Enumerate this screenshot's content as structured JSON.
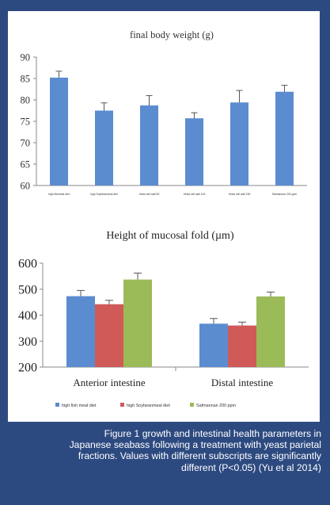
{
  "colors": {
    "background": "#2d4a80",
    "panel": "#ffffff",
    "bar_blue": "#5b8ccf",
    "bar_red": "#cf5a57",
    "bar_green": "#9bbb58",
    "axis": "#888888"
  },
  "chart_data": [
    {
      "type": "bar",
      "title": "final body weight (g)",
      "categories": [
        "high fishmeal diet",
        "high Soybeanmeal diet",
        "Yeast cell wall 50",
        "Yeast cell wall 100",
        "Yeast cell wall 150",
        "Safmannan 200 ppm"
      ],
      "values": [
        85.2,
        77.5,
        78.7,
        75.7,
        79.4,
        81.9
      ],
      "errors": [
        1.5,
        1.8,
        2.3,
        1.3,
        2.8,
        1.5
      ],
      "ylim": [
        60,
        90
      ],
      "yticks": [
        60,
        65,
        70,
        75,
        80,
        85,
        90
      ],
      "xlabel": "",
      "ylabel": "",
      "grid": false,
      "color": "#5b8ccf"
    },
    {
      "type": "bar",
      "title": "Height of mucosal fold (µm)",
      "categories": [
        "Anterior intestine",
        "Distal intestine"
      ],
      "series": [
        {
          "name": "high fish meal diet",
          "values": [
            473,
            367
          ],
          "errors": [
            22,
            20
          ],
          "color": "#5b8ccf"
        },
        {
          "name": "high Soybeanmeal diet",
          "values": [
            442,
            360
          ],
          "errors": [
            15,
            13
          ],
          "color": "#cf5a57"
        },
        {
          "name": "Safmannan 200 ppm",
          "values": [
            537,
            472
          ],
          "errors": [
            25,
            17
          ],
          "color": "#9bbb58"
        }
      ],
      "ylim": [
        200,
        600
      ],
      "yticks": [
        200,
        300,
        400,
        500,
        600
      ],
      "xlabel": "",
      "ylabel": "",
      "grid": false,
      "legend": "bottom"
    }
  ],
  "caption": {
    "lines": [
      "Figure 1 growth and intestinal health parameters in",
      "Japanese seabass following a treatment with yeast parietal",
      "fractions.  Values with different subscripts are significantly",
      "different (P<0.05) (Yu et al 2014)"
    ]
  }
}
